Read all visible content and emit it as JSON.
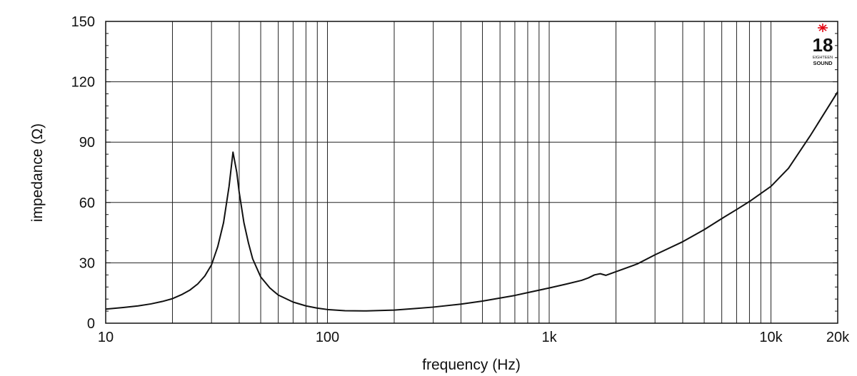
{
  "chart_data": {
    "type": "line",
    "xscale": "log",
    "xlim": [
      10,
      20000
    ],
    "ylim": [
      0,
      150
    ],
    "xlabel": "frequency (Hz)",
    "ylabel": "impedance (Ω)",
    "grid": true,
    "x_ticks": [
      {
        "value": 10,
        "label": "10"
      },
      {
        "value": 100,
        "label": "100"
      },
      {
        "value": 1000,
        "label": "1k"
      },
      {
        "value": 10000,
        "label": "10k"
      },
      {
        "value": 20000,
        "label": "20k"
      }
    ],
    "y_ticks": [
      {
        "value": 0,
        "label": "0"
      },
      {
        "value": 30,
        "label": "30"
      },
      {
        "value": 60,
        "label": "60"
      },
      {
        "value": 90,
        "label": "90"
      },
      {
        "value": 120,
        "label": "120"
      },
      {
        "value": 150,
        "label": "150"
      }
    ],
    "series": [
      {
        "points": [
          [
            10,
            7
          ],
          [
            12,
            7.8
          ],
          [
            14,
            8.6
          ],
          [
            16,
            9.6
          ],
          [
            18,
            10.8
          ],
          [
            20,
            12.2
          ],
          [
            22,
            14.2
          ],
          [
            24,
            16.5
          ],
          [
            26,
            19.5
          ],
          [
            28,
            23.5
          ],
          [
            30,
            29
          ],
          [
            32,
            38
          ],
          [
            34,
            50
          ],
          [
            36,
            68
          ],
          [
            37.5,
            85
          ],
          [
            39,
            75
          ],
          [
            40,
            65
          ],
          [
            42,
            50
          ],
          [
            44,
            40
          ],
          [
            46,
            32
          ],
          [
            50,
            23
          ],
          [
            55,
            17.5
          ],
          [
            60,
            14
          ],
          [
            70,
            10.5
          ],
          [
            80,
            8.6
          ],
          [
            90,
            7.5
          ],
          [
            100,
            6.8
          ],
          [
            120,
            6.2
          ],
          [
            150,
            6.1
          ],
          [
            200,
            6.5
          ],
          [
            250,
            7.3
          ],
          [
            300,
            8
          ],
          [
            400,
            9.5
          ],
          [
            500,
            11
          ],
          [
            600,
            12.5
          ],
          [
            700,
            13.8
          ],
          [
            800,
            15.2
          ],
          [
            1000,
            17.5
          ],
          [
            1200,
            19.5
          ],
          [
            1400,
            21.3
          ],
          [
            1500,
            22.5
          ],
          [
            1600,
            24
          ],
          [
            1700,
            24.6
          ],
          [
            1800,
            23.8
          ],
          [
            2000,
            25.6
          ],
          [
            2500,
            29.5
          ],
          [
            3000,
            34
          ],
          [
            4000,
            40.5
          ],
          [
            5000,
            46.5
          ],
          [
            6000,
            52
          ],
          [
            7000,
            56.5
          ],
          [
            8000,
            60.5
          ],
          [
            10000,
            68
          ],
          [
            12000,
            77
          ],
          [
            15000,
            93
          ],
          [
            20000,
            115
          ]
        ]
      }
    ]
  },
  "logo": {
    "number": "18",
    "line1": "EIGHTEEN",
    "line2": "SOUND",
    "star_color": "#e30613"
  }
}
